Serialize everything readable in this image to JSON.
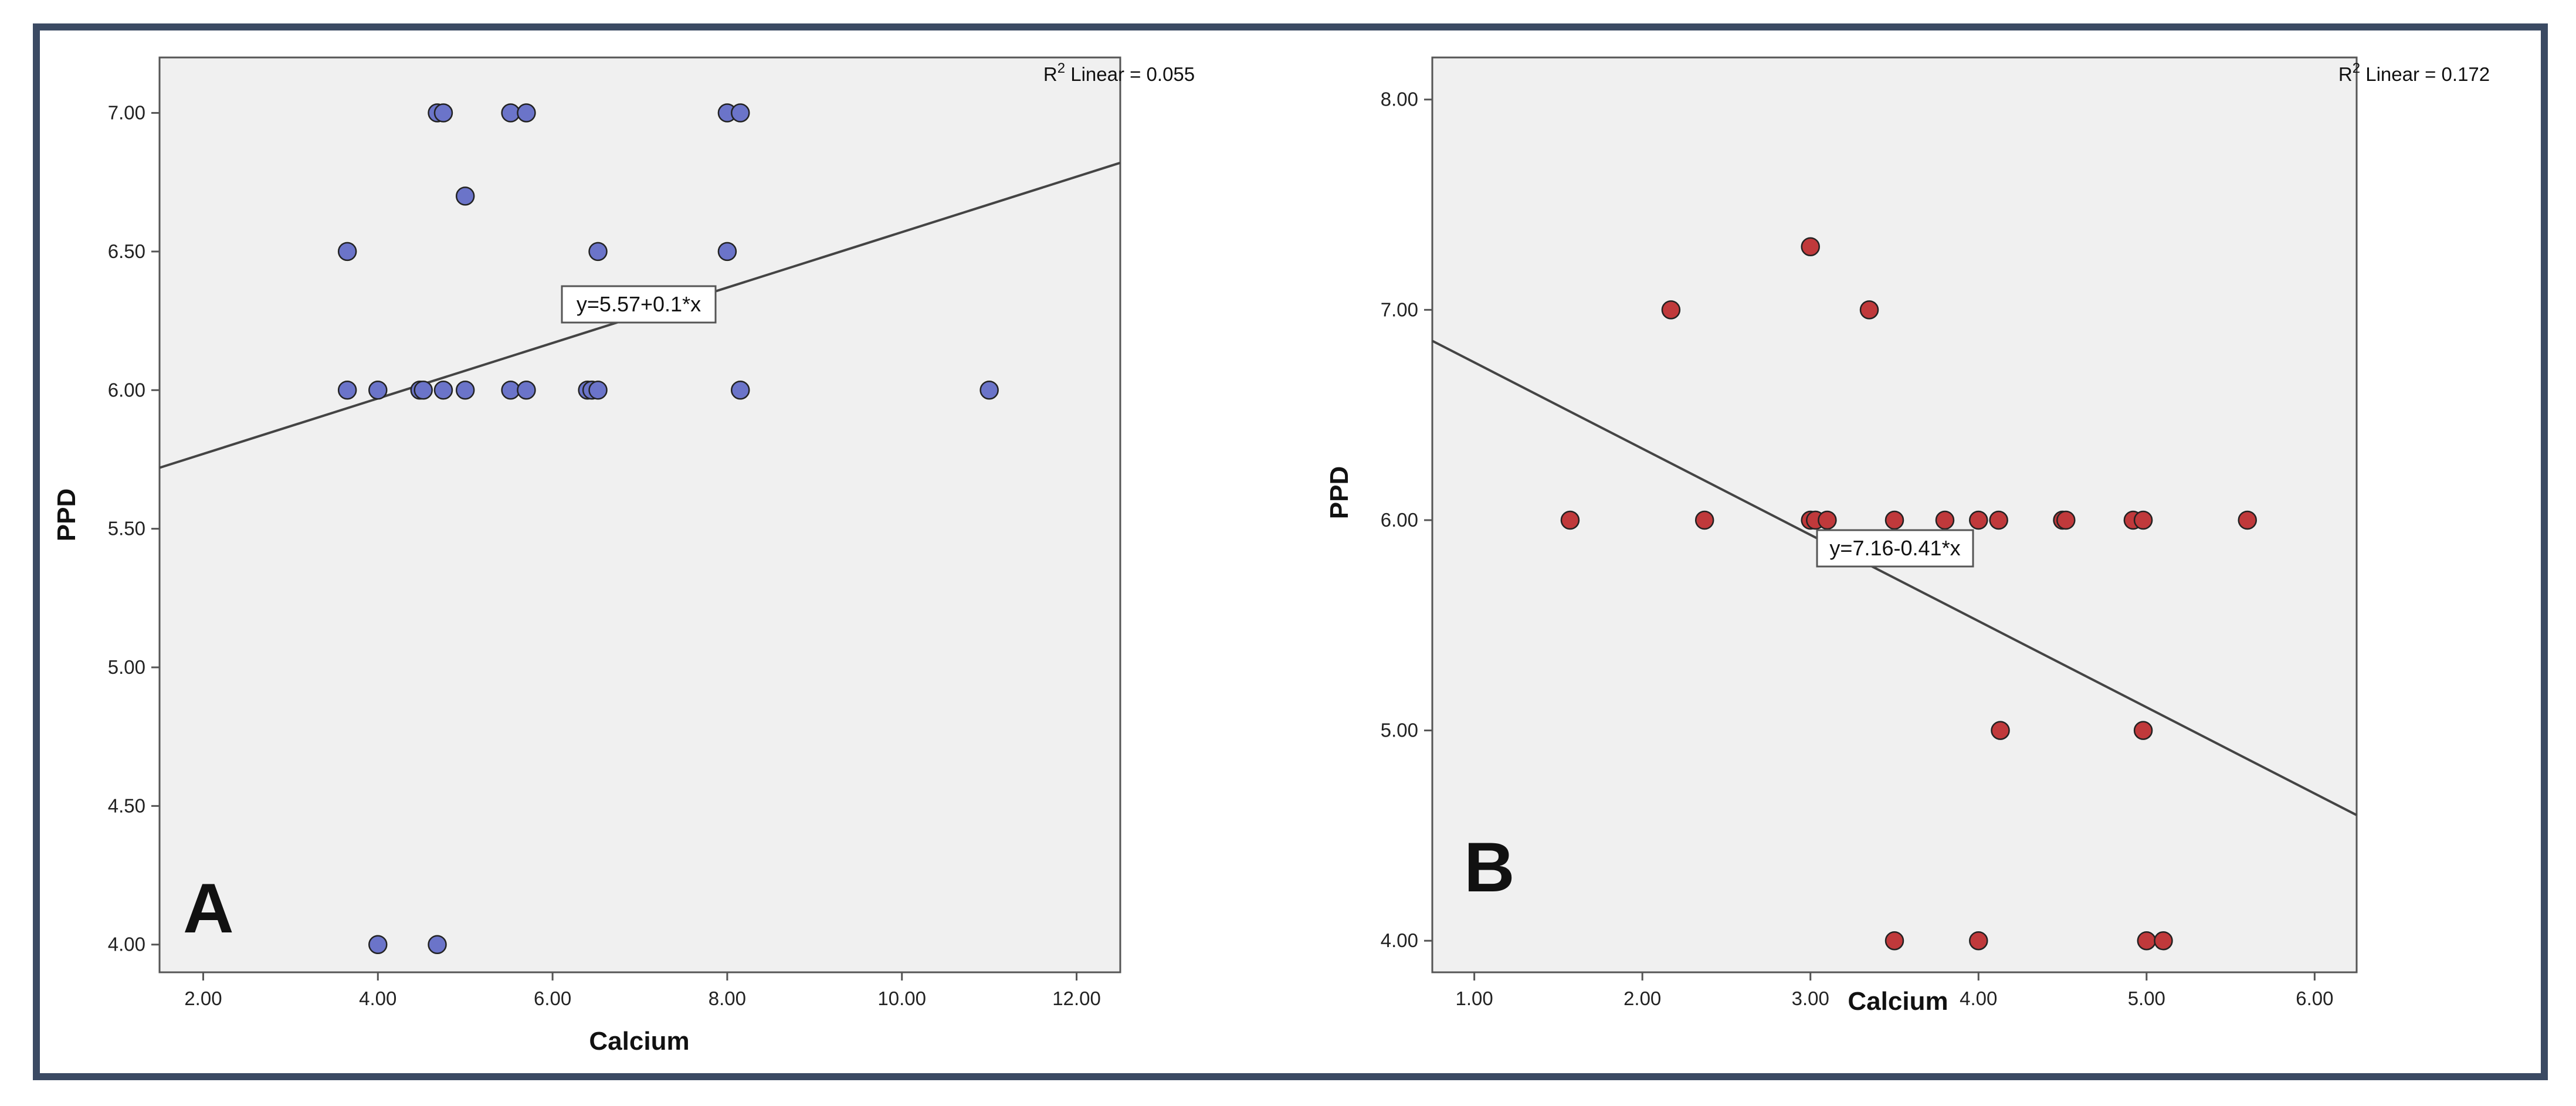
{
  "chart_data": [
    {
      "type": "scatter",
      "panel_label": "A",
      "xlabel": "Calcium",
      "ylabel": "PPD",
      "xlim": [
        1.5,
        12.5
      ],
      "ylim": [
        3.9,
        7.2
      ],
      "x_ticks": [
        2,
        4,
        6,
        8,
        10,
        12
      ],
      "x_tick_labels": [
        "2.00",
        "4.00",
        "6.00",
        "8.00",
        "10.00",
        "12.00"
      ],
      "y_ticks": [
        4,
        4.5,
        5,
        5.5,
        6,
        6.5,
        7
      ],
      "y_tick_labels": [
        "4.00",
        "4.50",
        "5.00",
        "5.50",
        "6.00",
        "6.50",
        "7.00"
      ],
      "grid": false,
      "point_color": "#6b74c9",
      "points": [
        {
          "x": 4.68,
          "y": 7.0
        },
        {
          "x": 4.75,
          "y": 7.0
        },
        {
          "x": 5.52,
          "y": 7.0
        },
        {
          "x": 5.7,
          "y": 7.0
        },
        {
          "x": 8.0,
          "y": 7.0
        },
        {
          "x": 8.15,
          "y": 7.0
        },
        {
          "x": 5.0,
          "y": 6.7
        },
        {
          "x": 3.65,
          "y": 6.5
        },
        {
          "x": 6.52,
          "y": 6.5
        },
        {
          "x": 8.0,
          "y": 6.5
        },
        {
          "x": 3.65,
          "y": 6.0
        },
        {
          "x": 4.0,
          "y": 6.0
        },
        {
          "x": 4.48,
          "y": 6.0
        },
        {
          "x": 4.52,
          "y": 6.0
        },
        {
          "x": 4.75,
          "y": 6.0
        },
        {
          "x": 5.0,
          "y": 6.0
        },
        {
          "x": 5.52,
          "y": 6.0
        },
        {
          "x": 5.7,
          "y": 6.0
        },
        {
          "x": 6.4,
          "y": 6.0
        },
        {
          "x": 6.45,
          "y": 6.0
        },
        {
          "x": 6.52,
          "y": 6.0
        },
        {
          "x": 8.15,
          "y": 6.0
        },
        {
          "x": 11.0,
          "y": 6.0
        },
        {
          "x": 4.0,
          "y": 4.0
        },
        {
          "x": 4.68,
          "y": 4.0
        }
      ],
      "fit_line": {
        "intercept": 5.57,
        "slope": 0.1
      },
      "equation": "y=5.57+0.1*x",
      "r2_prefix": "R",
      "r2_sup": "2",
      "r2_text": " Linear = 0.055"
    },
    {
      "type": "scatter",
      "panel_label": "B",
      "xlabel": "Calcium",
      "ylabel": "PPD",
      "xlim": [
        0.75,
        6.25
      ],
      "ylim": [
        3.85,
        8.2
      ],
      "x_ticks": [
        1,
        2,
        3,
        4,
        5,
        6
      ],
      "x_tick_labels": [
        "1.00",
        "2.00",
        "3.00",
        "4.00",
        "5.00",
        "6.00"
      ],
      "y_ticks": [
        4,
        5,
        6,
        7,
        8
      ],
      "y_tick_labels": [
        "4.00",
        "5.00",
        "6.00",
        "7.00",
        "8.00"
      ],
      "grid": false,
      "point_color": "#c0393b",
      "points": [
        {
          "x": 3.0,
          "y": 7.3
        },
        {
          "x": 2.17,
          "y": 7.0
        },
        {
          "x": 3.35,
          "y": 7.0
        },
        {
          "x": 1.57,
          "y": 6.0
        },
        {
          "x": 2.37,
          "y": 6.0
        },
        {
          "x": 3.0,
          "y": 6.0
        },
        {
          "x": 3.03,
          "y": 6.0
        },
        {
          "x": 3.1,
          "y": 6.0
        },
        {
          "x": 3.5,
          "y": 6.0
        },
        {
          "x": 3.8,
          "y": 6.0
        },
        {
          "x": 4.0,
          "y": 6.0
        },
        {
          "x": 4.12,
          "y": 6.0
        },
        {
          "x": 4.5,
          "y": 6.0
        },
        {
          "x": 4.52,
          "y": 6.0
        },
        {
          "x": 4.92,
          "y": 6.0
        },
        {
          "x": 4.98,
          "y": 6.0
        },
        {
          "x": 5.6,
          "y": 6.0
        },
        {
          "x": 4.13,
          "y": 5.0
        },
        {
          "x": 4.98,
          "y": 5.0
        },
        {
          "x": 3.5,
          "y": 4.0
        },
        {
          "x": 4.0,
          "y": 4.0
        },
        {
          "x": 5.0,
          "y": 4.0
        },
        {
          "x": 5.1,
          "y": 4.0
        }
      ],
      "fit_line": {
        "intercept": 7.16,
        "slope": -0.41
      },
      "equation": "y=7.16-0.41*x",
      "r2_prefix": "R",
      "r2_sup": "2",
      "r2_text": " Linear = 0.172"
    }
  ],
  "colors": {
    "frame_border": "#3b4a63",
    "plot_background": "#f0f0f0",
    "fit_line": "#444444"
  }
}
